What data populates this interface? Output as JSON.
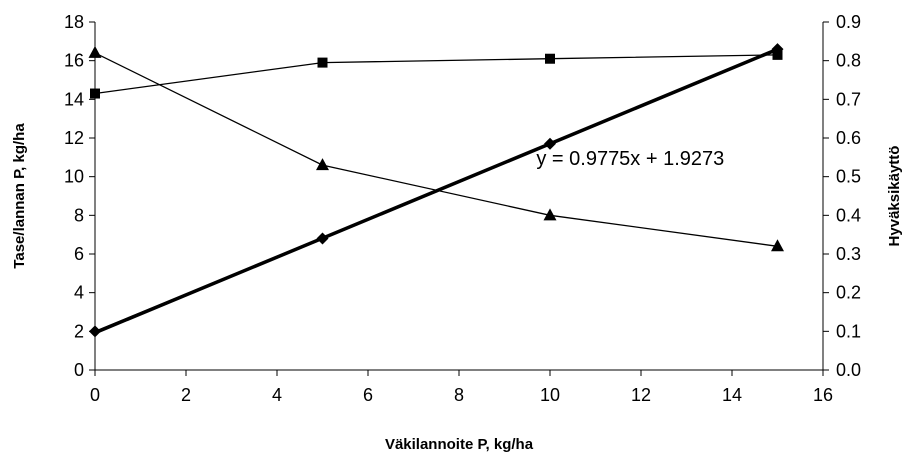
{
  "chart_data": {
    "type": "line",
    "title": "",
    "xlabel": "Väkilannoite P, kg/ha",
    "ylabel": "Tase/lannan P, kg/ha",
    "y2label": "Hyväksikäyttö",
    "xlim": [
      0,
      16
    ],
    "ylim": [
      0,
      18
    ],
    "y2lim": [
      0.0,
      0.9
    ],
    "xticks": [
      "0",
      "2",
      "4",
      "6",
      "8",
      "10",
      "12",
      "14",
      "16"
    ],
    "yticks": [
      "0",
      "2",
      "4",
      "6",
      "8",
      "10",
      "12",
      "14",
      "16",
      "18"
    ],
    "y2ticks": [
      "0.0",
      "0.1",
      "0.2",
      "0.3",
      "0.4",
      "0.5",
      "0.6",
      "0.7",
      "0.8",
      "0.9"
    ],
    "grid": false,
    "legend": "none",
    "series": [
      {
        "axis": "left",
        "marker": "diamond",
        "x": [
          0,
          5,
          10,
          15
        ],
        "y": [
          2.0,
          6.8,
          11.7,
          16.6
        ]
      },
      {
        "axis": "left",
        "marker": "square",
        "x": [
          0,
          5,
          10,
          15
        ],
        "y": [
          14.3,
          15.9,
          16.1,
          16.3
        ]
      },
      {
        "axis": "right",
        "marker": "triangle",
        "x": [
          0,
          5,
          10,
          15
        ],
        "y": [
          0.82,
          0.53,
          0.4,
          0.32
        ]
      }
    ],
    "trendline": {
      "label": "y = 0.9775x + 1.9273",
      "slope": 0.9775,
      "intercept": 1.9273,
      "x_range": [
        0,
        15
      ]
    }
  }
}
